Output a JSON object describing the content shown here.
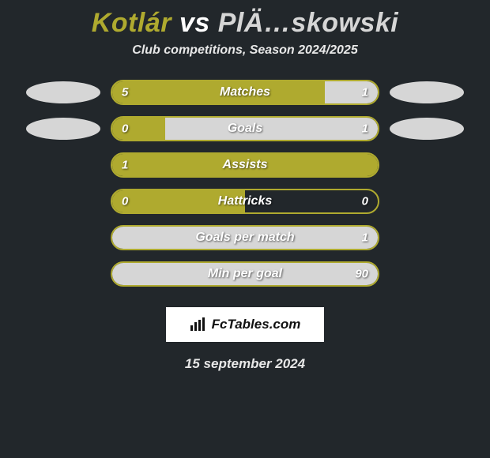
{
  "title": {
    "player1": "Kotlár",
    "vs": "vs",
    "player2": "PlÄ…skowski"
  },
  "subtitle": "Club competitions, Season 2024/2025",
  "colors": {
    "background": "#22272b",
    "player1": "#afaa2f",
    "player2": "#d6d6d6",
    "bar_border": "#afaa2f",
    "text": "#ffffff"
  },
  "avatar": {
    "width": 94,
    "height": 28,
    "color": "#d6d6d6"
  },
  "bars": [
    {
      "label": "Matches",
      "v1": "5",
      "v2": "1",
      "p1_pct": 80,
      "p2_pct": 20,
      "show_avatars": true
    },
    {
      "label": "Goals",
      "v1": "0",
      "v2": "1",
      "p1_pct": 20,
      "p2_pct": 80,
      "show_avatars": true
    },
    {
      "label": "Assists",
      "v1": "1",
      "v2": "",
      "p1_pct": 100,
      "p2_pct": 0,
      "show_avatars": false
    },
    {
      "label": "Hattricks",
      "v1": "0",
      "v2": "0",
      "p1_pct": 50,
      "p2_pct": 0,
      "show_avatars": false
    },
    {
      "label": "Goals per match",
      "v1": "",
      "v2": "1",
      "p1_pct": 0,
      "p2_pct": 100,
      "show_avatars": false
    },
    {
      "label": "Min per goal",
      "v1": "",
      "v2": "90",
      "p1_pct": 0,
      "p2_pct": 100,
      "show_avatars": false
    }
  ],
  "footer": {
    "site": "FcTables.com",
    "date": "15 september 2024"
  }
}
